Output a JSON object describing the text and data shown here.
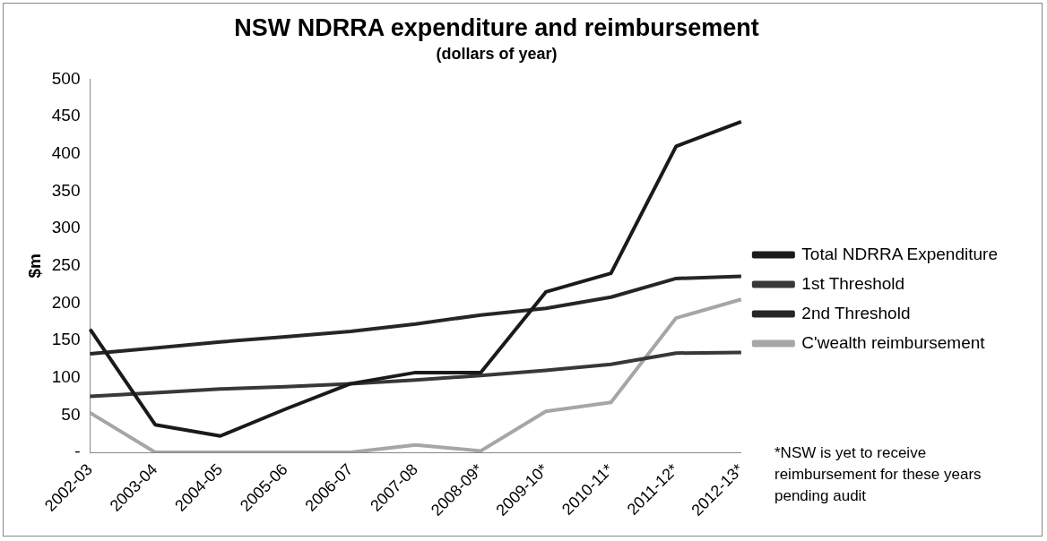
{
  "chart_data": {
    "type": "line",
    "title": "NSW NDRRA expenditure and reimbursement",
    "subtitle": "(dollars of year)",
    "ylabel": "$m",
    "categories": [
      "2002-03",
      "2003-04",
      "2004-05",
      "2005-06",
      "2006-07",
      "2007-08",
      "2008-09*",
      "2009-10*",
      "2010-11*",
      "2011-12*",
      "2012-13*"
    ],
    "series": [
      {
        "name": "Total NDRRA Expenditure",
        "color": "#1a1a1a",
        "values": [
          165,
          37,
          22,
          58,
          92,
          107,
          107,
          215,
          240,
          410,
          443
        ]
      },
      {
        "name": "1st Threshold",
        "color": "#383838",
        "values": [
          75,
          80,
          85,
          88,
          92,
          97,
          103,
          110,
          118,
          133,
          134
        ]
      },
      {
        "name": "2nd Threshold",
        "color": "#262626",
        "values": [
          132,
          140,
          148,
          155,
          162,
          172,
          184,
          193,
          208,
          233,
          236
        ]
      },
      {
        "name": "C'wealth reimbursement",
        "color": "#a6a6a6",
        "values": [
          53,
          0,
          0,
          0,
          0,
          10,
          2,
          55,
          67,
          180,
          205
        ]
      }
    ],
    "ylim": [
      0,
      500
    ],
    "yticks": [
      {
        "value": 0,
        "label": "-"
      },
      50,
      100,
      150,
      200,
      250,
      300,
      350,
      400,
      450,
      500
    ],
    "grid": false,
    "legend": "right",
    "marker": "none",
    "line_style": "solid",
    "annotations": [
      "*NSW is yet to receive reimbursement for these years pending audit"
    ]
  }
}
